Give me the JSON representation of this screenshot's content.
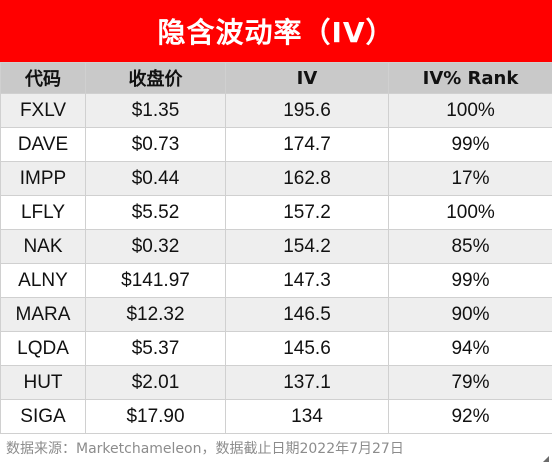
{
  "title": "隐含波动率（IV）",
  "headers": [
    "代码",
    "收盘价",
    "IV",
    "IV% Rank"
  ],
  "rows": [
    {
      "symbol": "FXLV",
      "price": "$1.35",
      "iv": "195.6",
      "rank": "100%"
    },
    {
      "symbol": "DAVE",
      "price": "$0.73",
      "iv": "174.7",
      "rank": "99%"
    },
    {
      "symbol": "IMPP",
      "price": "$0.44",
      "iv": "162.8",
      "rank": "17%"
    },
    {
      "symbol": "LFLY",
      "price": "$5.52",
      "iv": "157.2",
      "rank": "100%"
    },
    {
      "symbol": "NAK",
      "price": "$0.32",
      "iv": "154.2",
      "rank": "85%"
    },
    {
      "symbol": "ALNY",
      "price": "$141.97",
      "iv": "147.3",
      "rank": "99%"
    },
    {
      "symbol": "MARA",
      "price": "$12.32",
      "iv": "146.5",
      "rank": "90%"
    },
    {
      "symbol": "LQDA",
      "price": "$5.37",
      "iv": "145.6",
      "rank": "94%"
    },
    {
      "symbol": "HUT",
      "price": "$2.01",
      "iv": "137.1",
      "rank": "79%"
    },
    {
      "symbol": "SIGA",
      "price": "$17.90",
      "iv": "134",
      "rank": "92%"
    }
  ],
  "footnote": "数据来源：Marketchameleon，数据截止日期2022年7月27日",
  "colors": {
    "title_bg": "#ff0000",
    "title_text": "#ffffff",
    "header_bg": "#c9c9c9",
    "alt_row_bg": "#eeeeee",
    "footnote_text": "#8c8c8c"
  }
}
